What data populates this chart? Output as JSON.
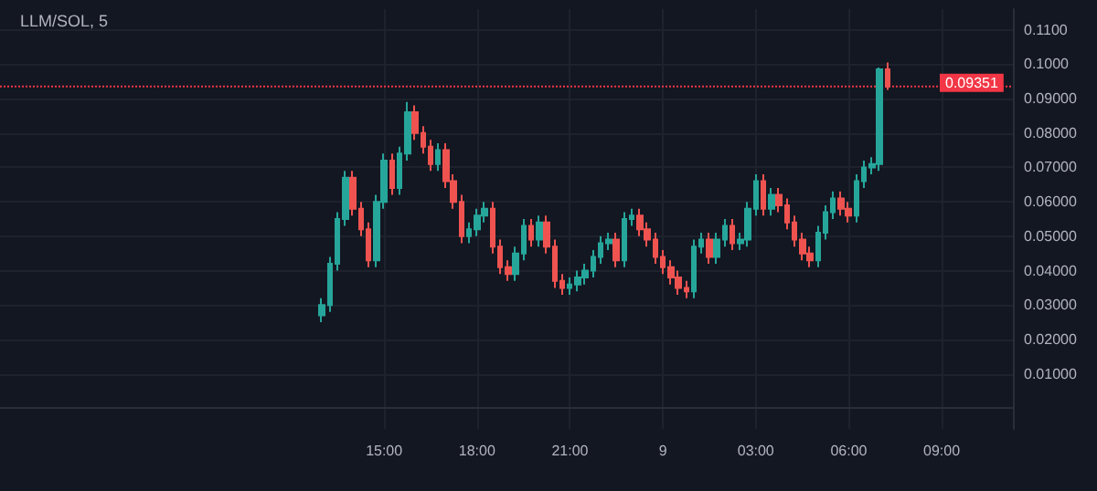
{
  "chart_data": {
    "type": "candlestick",
    "title": "LLM/SOL, 5",
    "x": [
      "--01-08T13:00",
      "--01-08T13:15",
      "--01-08T13:30",
      "--01-08T13:45",
      "--01-08T14:00",
      "--01-08T14:15",
      "--01-08T14:30",
      "--01-08T14:45",
      "--01-08T15:00",
      "--01-08T15:15",
      "--01-08T15:30",
      "--01-08T15:45",
      "--01-08T16:00",
      "--01-08T16:15",
      "--01-08T16:30",
      "--01-08T16:45",
      "--01-08T17:00",
      "--01-08T17:15",
      "--01-08T17:30",
      "--01-08T17:45",
      "--01-08T18:00",
      "--01-08T18:15",
      "--01-08T18:30",
      "--01-08T18:45",
      "--01-08T19:00",
      "--01-08T19:15",
      "--01-08T19:30",
      "--01-08T19:45",
      "--01-08T20:00",
      "--01-08T20:15",
      "--01-08T20:30",
      "--01-08T20:45",
      "--01-08T21:00",
      "--01-08T21:15",
      "--01-08T21:30",
      "--01-08T21:45",
      "--01-08T22:00",
      "--01-08T22:15",
      "--01-08T22:30",
      "--01-08T22:45",
      "--01-08T23:00",
      "--01-08T23:15",
      "--01-08T23:30",
      "--01-08T23:45",
      "--01-09T00:00",
      "--01-09T00:15",
      "--01-09T00:30",
      "--01-09T00:45",
      "--01-09T01:00",
      "--01-09T01:15",
      "--01-09T01:30",
      "--01-09T01:45",
      "--01-09T02:00",
      "--01-09T02:15",
      "--01-09T02:30",
      "--01-09T02:45",
      "--01-09T03:00",
      "--01-09T03:15",
      "--01-09T03:30",
      "--01-09T03:45",
      "--01-09T04:00",
      "--01-09T04:15",
      "--01-09T04:30",
      "--01-09T04:45",
      "--01-09T05:00",
      "--01-09T05:15",
      "--01-09T05:30",
      "--01-09T05:45",
      "--01-09T06:00",
      "--01-09T06:15",
      "--01-09T06:30",
      "--01-09T06:45",
      "--01-09T07:00",
      "--01-09T07:15"
    ],
    "ohlc": [
      [
        0.027,
        0.032,
        0.025,
        0.03
      ],
      [
        0.03,
        0.044,
        0.028,
        0.042
      ],
      [
        0.042,
        0.057,
        0.04,
        0.055
      ],
      [
        0.055,
        0.069,
        0.053,
        0.067
      ],
      [
        0.067,
        0.069,
        0.056,
        0.058
      ],
      [
        0.058,
        0.06,
        0.05,
        0.052
      ],
      [
        0.052,
        0.054,
        0.041,
        0.043
      ],
      [
        0.043,
        0.062,
        0.041,
        0.06
      ],
      [
        0.06,
        0.074,
        0.058,
        0.072
      ],
      [
        0.072,
        0.074,
        0.062,
        0.064
      ],
      [
        0.064,
        0.076,
        0.062,
        0.074
      ],
      [
        0.074,
        0.089,
        0.072,
        0.086
      ],
      [
        0.086,
        0.088,
        0.078,
        0.08
      ],
      [
        0.08,
        0.082,
        0.074,
        0.076
      ],
      [
        0.076,
        0.078,
        0.069,
        0.071
      ],
      [
        0.071,
        0.077,
        0.069,
        0.075
      ],
      [
        0.075,
        0.077,
        0.064,
        0.066
      ],
      [
        0.066,
        0.068,
        0.058,
        0.06
      ],
      [
        0.06,
        0.062,
        0.048,
        0.05
      ],
      [
        0.05,
        0.054,
        0.048,
        0.052
      ],
      [
        0.052,
        0.058,
        0.05,
        0.056
      ],
      [
        0.056,
        0.06,
        0.054,
        0.058
      ],
      [
        0.058,
        0.06,
        0.045,
        0.047
      ],
      [
        0.047,
        0.049,
        0.039,
        0.041
      ],
      [
        0.041,
        0.043,
        0.037,
        0.039
      ],
      [
        0.039,
        0.047,
        0.037,
        0.045
      ],
      [
        0.045,
        0.055,
        0.043,
        0.053
      ],
      [
        0.053,
        0.055,
        0.047,
        0.049
      ],
      [
        0.049,
        0.056,
        0.047,
        0.054
      ],
      [
        0.054,
        0.056,
        0.045,
        0.047
      ],
      [
        0.047,
        0.049,
        0.035,
        0.037
      ],
      [
        0.037,
        0.039,
        0.033,
        0.035
      ],
      [
        0.035,
        0.038,
        0.033,
        0.036
      ],
      [
        0.036,
        0.04,
        0.034,
        0.038
      ],
      [
        0.038,
        0.042,
        0.036,
        0.04
      ],
      [
        0.04,
        0.046,
        0.038,
        0.044
      ],
      [
        0.044,
        0.05,
        0.042,
        0.048
      ],
      [
        0.048,
        0.051,
        0.046,
        0.049
      ],
      [
        0.049,
        0.051,
        0.041,
        0.043
      ],
      [
        0.043,
        0.057,
        0.041,
        0.055
      ],
      [
        0.055,
        0.058,
        0.053,
        0.056
      ],
      [
        0.056,
        0.058,
        0.05,
        0.052
      ],
      [
        0.052,
        0.054,
        0.047,
        0.049
      ],
      [
        0.049,
        0.051,
        0.042,
        0.044
      ],
      [
        0.044,
        0.046,
        0.039,
        0.041
      ],
      [
        0.041,
        0.043,
        0.036,
        0.038
      ],
      [
        0.038,
        0.04,
        0.033,
        0.035
      ],
      [
        0.035,
        0.037,
        0.032,
        0.034
      ],
      [
        0.034,
        0.049,
        0.032,
        0.047
      ],
      [
        0.047,
        0.051,
        0.045,
        0.049
      ],
      [
        0.049,
        0.051,
        0.042,
        0.044
      ],
      [
        0.044,
        0.051,
        0.042,
        0.049
      ],
      [
        0.049,
        0.055,
        0.047,
        0.053
      ],
      [
        0.053,
        0.055,
        0.046,
        0.048
      ],
      [
        0.048,
        0.051,
        0.046,
        0.049
      ],
      [
        0.049,
        0.06,
        0.047,
        0.058
      ],
      [
        0.058,
        0.068,
        0.056,
        0.066
      ],
      [
        0.066,
        0.068,
        0.056,
        0.058
      ],
      [
        0.058,
        0.064,
        0.056,
        0.062
      ],
      [
        0.062,
        0.064,
        0.057,
        0.059
      ],
      [
        0.059,
        0.061,
        0.052,
        0.054
      ],
      [
        0.054,
        0.056,
        0.047,
        0.049
      ],
      [
        0.049,
        0.051,
        0.043,
        0.045
      ],
      [
        0.045,
        0.047,
        0.041,
        0.043
      ],
      [
        0.043,
        0.053,
        0.041,
        0.051
      ],
      [
        0.051,
        0.059,
        0.049,
        0.057
      ],
      [
        0.057,
        0.063,
        0.055,
        0.061
      ],
      [
        0.061,
        0.063,
        0.056,
        0.058
      ],
      [
        0.058,
        0.06,
        0.054,
        0.056
      ],
      [
        0.056,
        0.068,
        0.054,
        0.066
      ],
      [
        0.066,
        0.072,
        0.064,
        0.07
      ],
      [
        0.07,
        0.073,
        0.068,
        0.071
      ],
      [
        0.071,
        0.099,
        0.069,
        0.0985
      ],
      [
        0.0985,
        0.1005,
        0.0925,
        0.09351
      ]
    ],
    "xlim": [
      "--01-08T02:36",
      "--01-09T11:18"
    ],
    "xticks": [
      {
        "value": "--01-08T15:00",
        "label": "15:00"
      },
      {
        "value": "--01-08T18:00",
        "label": "18:00"
      },
      {
        "value": "--01-08T21:00",
        "label": "21:00"
      },
      {
        "value": "--01-09T00:00",
        "label": "9"
      },
      {
        "value": "--01-09T03:00",
        "label": "03:00"
      },
      {
        "value": "--01-09T06:00",
        "label": "06:00"
      },
      {
        "value": "--01-09T09:00",
        "label": "09:00"
      }
    ],
    "ylim": [
      -0.006,
      0.116
    ],
    "yticks": [
      {
        "value": 0.01,
        "label": "0.01000"
      },
      {
        "value": 0.02,
        "label": "0.02000"
      },
      {
        "value": 0.03,
        "label": "0.03000"
      },
      {
        "value": 0.04,
        "label": "0.04000"
      },
      {
        "value": 0.05,
        "label": "0.05000"
      },
      {
        "value": 0.06,
        "label": "0.06000"
      },
      {
        "value": 0.07,
        "label": "0.07000"
      },
      {
        "value": 0.08,
        "label": "0.08000"
      },
      {
        "value": 0.09,
        "label": "0.09000"
      },
      {
        "value": 0.1,
        "label": "0.1000"
      },
      {
        "value": 0.11,
        "label": "0.1100"
      }
    ],
    "ref_lines": [
      {
        "axis": "y",
        "value": 0.09351,
        "label": "0.09351",
        "color": "#f23645",
        "line_style": "dotted"
      }
    ],
    "grid": true
  }
}
